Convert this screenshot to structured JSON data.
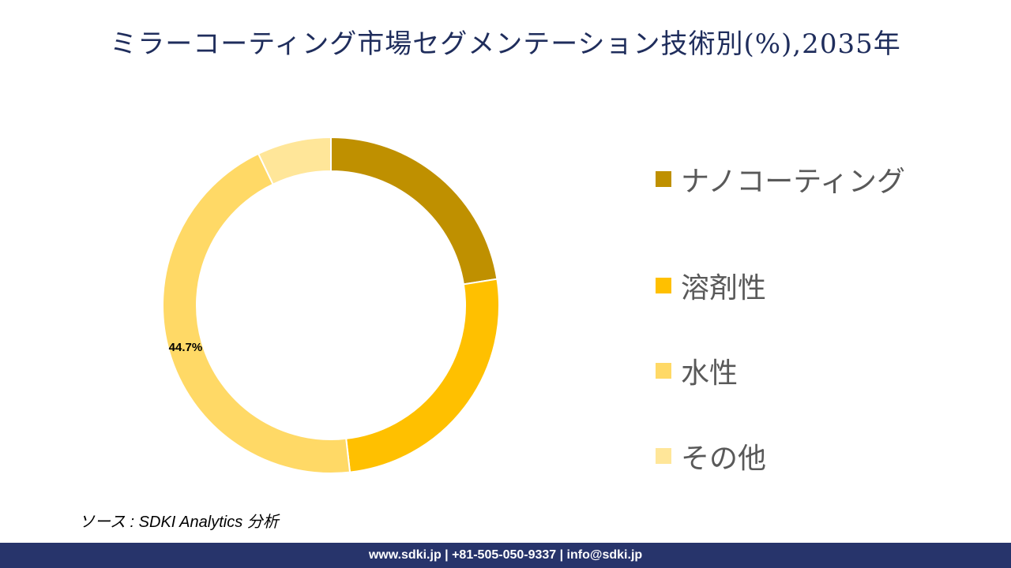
{
  "title": "ミラーコーティング市場セグメンテーション技術別(%),2035年",
  "chart_data": {
    "type": "pie",
    "variant": "donut",
    "title": "ミラーコーティング市場セグメンテーション技術別(%),2035年",
    "categories": [
      "ナノコーティング",
      "溶剤性",
      "水性",
      "その他"
    ],
    "values": [
      22.5,
      25.7,
      44.7,
      7.1
    ],
    "colors": [
      "#bf9000",
      "#ffc000",
      "#ffd966",
      "#ffe699"
    ],
    "data_labels": [
      "",
      "",
      "44.7%",
      ""
    ],
    "legend_position": "right"
  },
  "source": "ソース : SDKI Analytics 分析",
  "footer": "www.sdki.jp | +81-505-050-9337 | info@sdki.jp"
}
